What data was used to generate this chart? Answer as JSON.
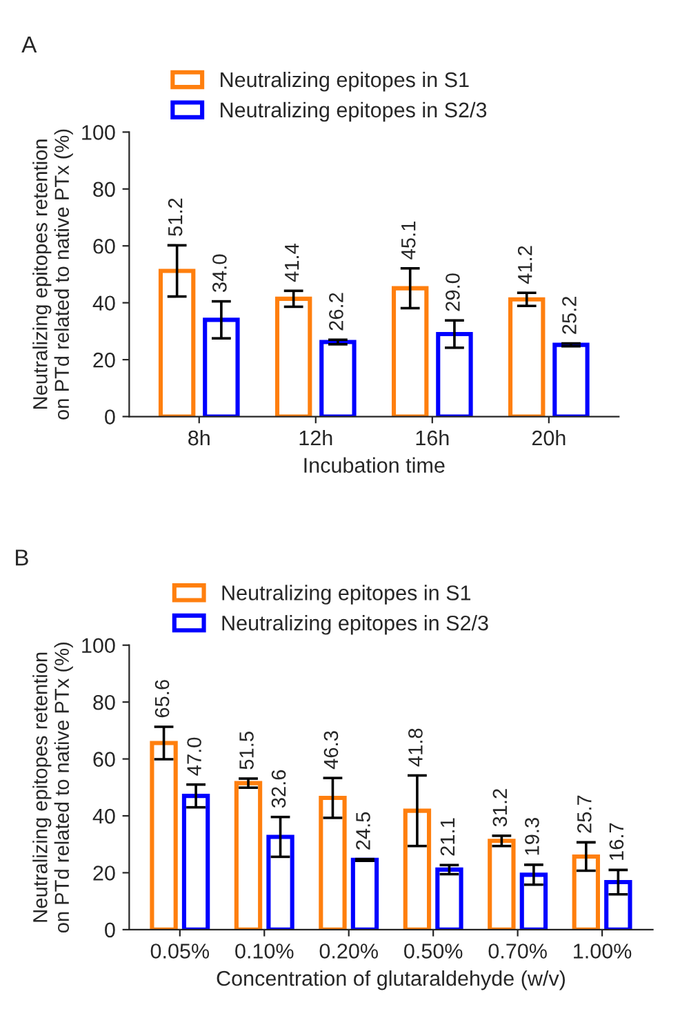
{
  "chart_data": [
    {
      "type": "bar",
      "annotations": [
        "A"
      ],
      "xlabel": "Incubation time",
      "ylabel": "Neutralizing epitopes retention\non PTd related to native PTx (%)",
      "categories": [
        "8h",
        "12h",
        "16h",
        "20h"
      ],
      "ylim": [
        0,
        100
      ],
      "yticks": [
        0,
        20,
        40,
        60,
        80,
        100
      ],
      "legend": "top",
      "grid": false,
      "series": [
        {
          "name": "Neutralizing epitopes in S1",
          "color": "#ff7f0e",
          "values": [
            51.2,
            41.4,
            45.1,
            41.2
          ],
          "value_labels": [
            "51.2",
            "41.4",
            "45.1",
            "41.2"
          ],
          "errors": [
            9,
            2.8,
            7,
            2.3
          ]
        },
        {
          "name": "Neutralizing epitopes in S2/3",
          "color": "#0000ff",
          "values": [
            34.0,
            26.2,
            29.0,
            25.2
          ],
          "value_labels": [
            "34.0",
            "26.2",
            "29.0",
            "25.2"
          ],
          "errors": [
            6.5,
            0.8,
            4.8,
            0.5
          ]
        }
      ]
    },
    {
      "type": "bar",
      "annotations": [
        "B"
      ],
      "xlabel": "Concentration of glutaraldehyde (w/v)",
      "ylabel": "Neutralizing epitopes retention\non PTd related to native PTx (%)",
      "categories": [
        "0.05%",
        "0.10%",
        "0.20%",
        "0.50%",
        "0.70%",
        "1.00%"
      ],
      "ylim": [
        0,
        100
      ],
      "yticks": [
        0,
        20,
        40,
        60,
        80,
        100
      ],
      "legend": "top",
      "grid": false,
      "series": [
        {
          "name": "Neutralizing epitopes in S1",
          "color": "#ff7f0e",
          "values": [
            65.6,
            51.5,
            46.3,
            41.8,
            31.2,
            25.7
          ],
          "value_labels": [
            "65.6",
            "51.5",
            "46.3",
            "41.8",
            "31.2",
            "25.7"
          ],
          "errors": [
            5.7,
            1.6,
            7,
            12.4,
            1.8,
            5
          ]
        },
        {
          "name": "Neutralizing epitopes in S2/3",
          "color": "#0000ff",
          "values": [
            47.0,
            32.6,
            24.5,
            21.1,
            19.3,
            16.7
          ],
          "value_labels": [
            "47.0",
            "32.6",
            "24.5",
            "21.1",
            "19.3",
            "16.7"
          ],
          "errors": [
            4,
            7,
            0.3,
            1.6,
            3.5,
            4.3
          ]
        }
      ]
    }
  ]
}
